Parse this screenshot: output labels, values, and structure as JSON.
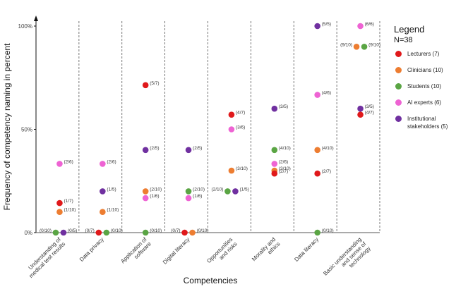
{
  "chart_data": {
    "type": "scatter",
    "title": "",
    "xlabel": "Competencies",
    "ylabel": "Frequency of competency naming in percent",
    "ylim": [
      0,
      100
    ],
    "yticks": [
      {
        "value": 0,
        "label": "0%"
      },
      {
        "value": 50,
        "label": "50%"
      },
      {
        "value": 100,
        "label": "100%"
      }
    ],
    "categories": [
      [
        "Understanding of",
        "medical test results"
      ],
      [
        "Data privacy"
      ],
      [
        "Application of",
        "software"
      ],
      [
        "Digital literacy"
      ],
      [
        "Opportunities",
        "and risks"
      ],
      [
        "Morality and",
        "ethics"
      ],
      [
        "Data literacy"
      ],
      [
        "Basic understanding",
        "and sense of",
        "technology"
      ]
    ],
    "legend": {
      "title": "Legend",
      "subtitle": "N=38",
      "position": "right"
    },
    "series": [
      {
        "name": "Lecturers (7)",
        "color": "#e0191b",
        "values": [
          14.3,
          0,
          71.4,
          0,
          57.1,
          28.6,
          28.6,
          57.1
        ],
        "labels": [
          "(1/7)",
          "(0/7)",
          "(5/7)",
          "(0/7)",
          "(4/7)",
          "(2/7)",
          "(2/7)",
          "(4/7)"
        ]
      },
      {
        "name": "Clinicians (10)",
        "color": "#ed7d31",
        "values": [
          10,
          10,
          20,
          0,
          30,
          30,
          40,
          90
        ],
        "labels": [
          "(1/10)",
          "(1/10)",
          "(2/10)",
          "(0/10)",
          "(3/10)",
          "(3/10)",
          "(4/10)",
          "(9/10)"
        ]
      },
      {
        "name": "Students (10)",
        "color": "#5aa544",
        "values": [
          0,
          0,
          0,
          20,
          20,
          40,
          0,
          90
        ],
        "labels": [
          "(0/10)",
          "(0/10)",
          "(0/10)",
          "(2/10)",
          "(2/10)",
          "(4/10)",
          "(0/10)",
          "(9/10)"
        ]
      },
      {
        "name": "AI experts (6)",
        "color": "#ee63d3",
        "values": [
          33.3,
          33.3,
          16.7,
          16.7,
          50,
          33.3,
          66.7,
          100
        ],
        "labels": [
          "(2/6)",
          "(2/6)",
          "(1/6)",
          "(1/6)",
          "(3/6)",
          "(2/6)",
          "(4/6)",
          "(6/6)"
        ]
      },
      {
        "name": "Institutional stakeholders (5)",
        "color": "#7030a0",
        "values": [
          0,
          20,
          40,
          40,
          20,
          60,
          100,
          60
        ],
        "labels": [
          "(0/5)",
          "(1/5)",
          "(2/5)",
          "(2/5)",
          "(1/5)",
          "(3/5)",
          "(5/5)",
          "(3/5)"
        ]
      }
    ]
  }
}
